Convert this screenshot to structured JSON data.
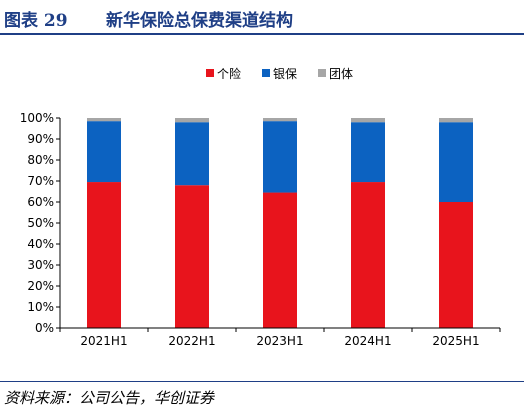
{
  "figure": {
    "label": "图表 29",
    "title": "新华保险总保费渠道结构",
    "source": "资料来源：公司公告，华创证券"
  },
  "chart_data": {
    "type": "bar",
    "stacked": true,
    "categories": [
      "2021H1",
      "2022H1",
      "2023H1",
      "2024H1",
      "2025H1"
    ],
    "series": [
      {
        "name": "个险",
        "color": "#e8141c",
        "values": [
          69.5,
          68,
          64.5,
          69.5,
          60
        ]
      },
      {
        "name": "银保",
        "color": "#0c62c1",
        "values": [
          29,
          30,
          34,
          28.5,
          38
        ]
      },
      {
        "name": "团体",
        "color": "#a6a6a6",
        "values": [
          1.5,
          2,
          1.5,
          2,
          2
        ]
      }
    ],
    "yticks": [
      "0%",
      "10%",
      "20%",
      "30%",
      "40%",
      "50%",
      "60%",
      "70%",
      "80%",
      "90%",
      "100%"
    ],
    "ylim": [
      0,
      100
    ],
    "legend_position": "top",
    "grid": false
  }
}
